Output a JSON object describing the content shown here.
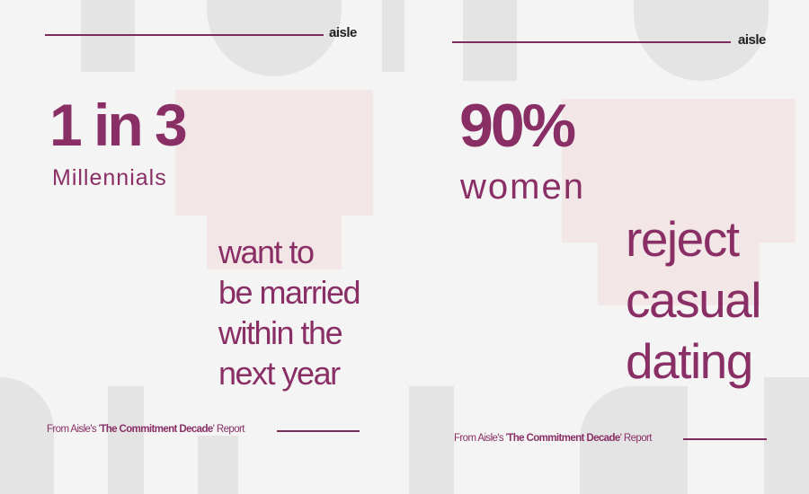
{
  "brand": {
    "logo": "aisle",
    "accent": "#8a2f66"
  },
  "left": {
    "stat": "1 in 3",
    "subject": "Millennials",
    "statement_lines": [
      "want to",
      "be married",
      "within the",
      "next year"
    ],
    "footer": {
      "prefix": "From Aisle's '",
      "title": "The Commitment Decade",
      "suffix": "' Report"
    }
  },
  "right": {
    "stat": "90%",
    "subject": "women",
    "statement_lines": [
      "reject",
      "casual",
      "dating"
    ],
    "footer": {
      "prefix": "From Aisle's '",
      "title": "The Commitment Decade",
      "suffix": "' Report"
    }
  }
}
